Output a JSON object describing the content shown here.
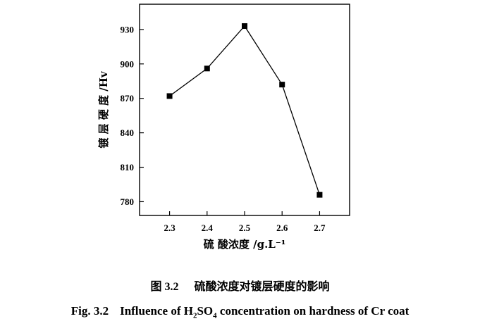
{
  "chart_data": {
    "type": "line",
    "x": [
      2.3,
      2.4,
      2.5,
      2.6,
      2.7
    ],
    "y": [
      872,
      896,
      933,
      882,
      786
    ],
    "x_ticks": [
      "2.3",
      "2.4",
      "2.5",
      "2.6",
      "2.7"
    ],
    "y_ticks": [
      "780",
      "810",
      "840",
      "870",
      "900",
      "930"
    ],
    "xlabel": "硫 酸浓度  /g.L⁻¹",
    "ylabel": "镀 层 硬 度  /Hv",
    "xlim": [
      2.22,
      2.78
    ],
    "ylim": [
      768,
      952
    ],
    "marker": "square",
    "color": "#000000"
  },
  "caption": {
    "cn_number": "图 3.2",
    "cn_text": "硫酸浓度对镀层硬度的影响",
    "en_number": "Fig. 3.2",
    "en_text_a": "Influence of H",
    "en_sub_a": "2",
    "en_text_b": "SO",
    "en_sub_b": "4",
    "en_text_c": " concentration on hardness of Cr coat"
  }
}
